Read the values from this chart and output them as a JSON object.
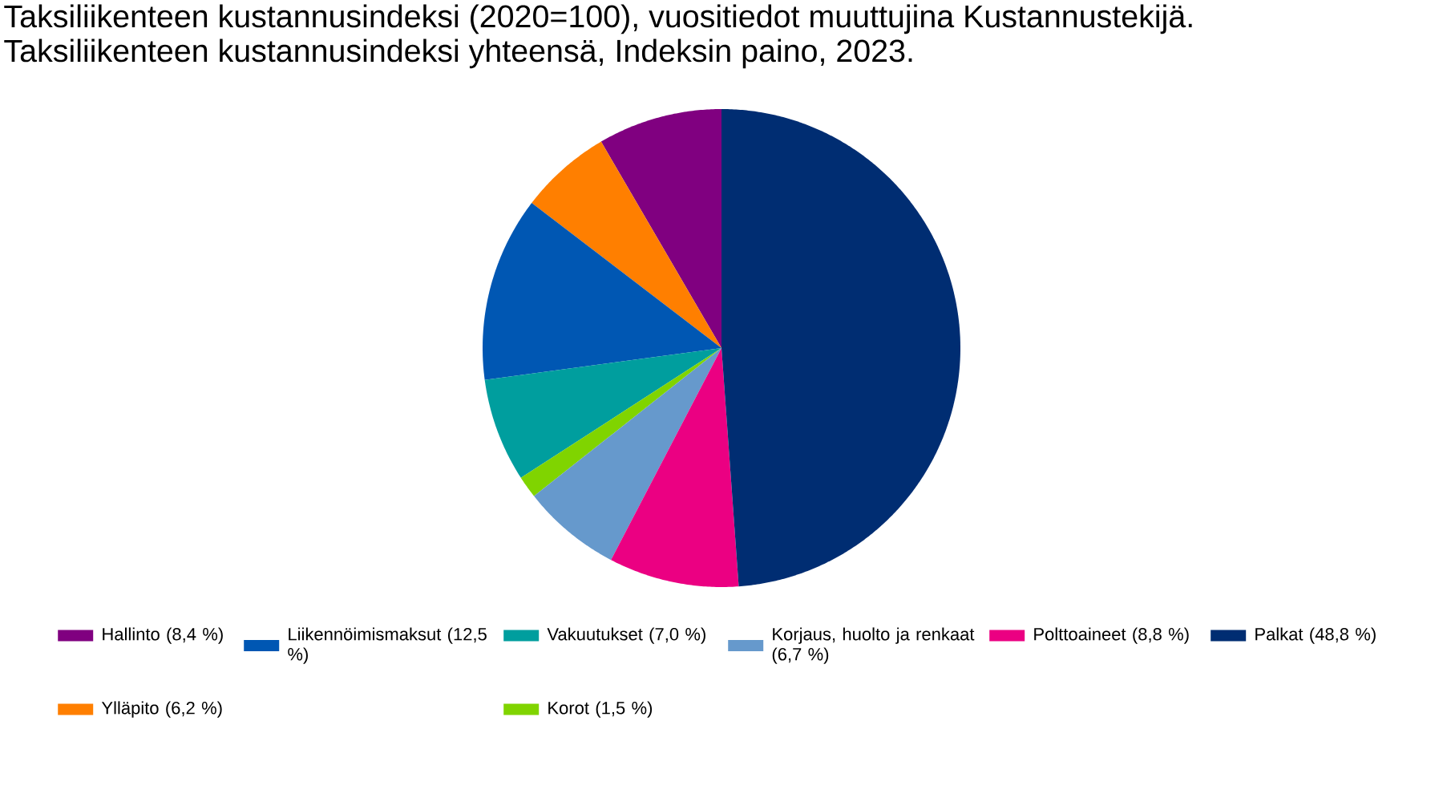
{
  "chart_data": {
    "type": "pie",
    "title": "Taksiliikenteen kustannusindeksi (2020=100), vuositiedot muuttujina Kustannustekijä.",
    "subtitle": "Taksiliikenteen kustannusindeksi yhteensä, Indeksin paino, 2023.",
    "categories": [
      "Hallinto (8,4 %)",
      "Ylläpito (6,2 %)",
      "Liikennöimismaksut (12,5 %)",
      "Vakuutukset (7,0 %)",
      "Korot (1,5 %)",
      "Korjaus, huolto ja renkaat (6,7 %)",
      "Polttoaineet (8,8 %)",
      "Palkat (48,8 %)"
    ],
    "values": [
      8.4,
      6.2,
      12.5,
      7.0,
      1.5,
      6.7,
      8.8,
      48.8
    ],
    "colors": [
      "#800080",
      "#ff7f00",
      "#0057b3",
      "#009e9e",
      "#80d400",
      "#6699cc",
      "#eb0082",
      "#002d72"
    ],
    "legend": "bottom"
  }
}
